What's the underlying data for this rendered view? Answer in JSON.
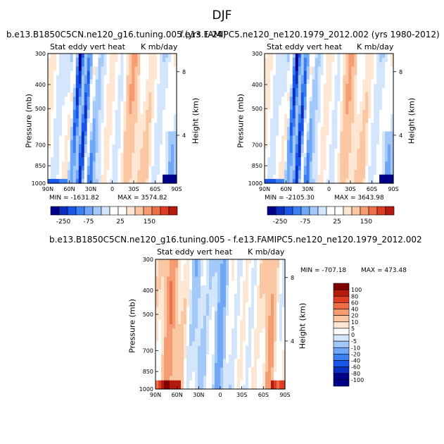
{
  "title": "DJF",
  "colors": {
    "cold": [
      "#00008a",
      "#0a2fc0",
      "#1a57e8",
      "#3b7ff0",
      "#6fa6f5",
      "#a3c8fa",
      "#d4e6fc"
    ],
    "neutral": "#ffffff",
    "warm": [
      "#fde6d2",
      "#fbc6a2",
      "#f69c72",
      "#ee6e48",
      "#dd3d22",
      "#b51a0e",
      "#800000"
    ]
  },
  "chart_data": [
    {
      "type": "heatmap",
      "title": "b.e13.B1850C5CN.ne120_g16.tuning.005 (yrs 1-24)",
      "subtitle_left": "Stat eddy vert heat",
      "subtitle_right": "K mb/day",
      "xlabel": "",
      "ylabel": "Pressure (mb)",
      "ylabel_right": "Height (km)",
      "x_ticks": [
        "90N",
        "60N",
        "30N",
        "0",
        "30S",
        "60S",
        "90S"
      ],
      "y_ticks": [
        "300",
        "400",
        "500",
        "700",
        "850",
        "1000"
      ],
      "y_right_ticks": [
        "8",
        "4"
      ],
      "min_label": "MIN = -1631.82",
      "max_label": "MAX = 3574.82",
      "colorbar_ticks": [
        "-250",
        "-75",
        "25",
        "150"
      ]
    },
    {
      "type": "heatmap",
      "title": "f.e13.FAMIPC5.ne120_ne120.1979_2012.002 (yrs 1980-2012)",
      "subtitle_left": "Stat eddy vert heat",
      "subtitle_right": "K mb/day",
      "xlabel": "",
      "ylabel": "Pressure (mb)",
      "ylabel_right": "Height (km)",
      "x_ticks": [
        "90N",
        "60N",
        "30N",
        "0",
        "30S",
        "60S",
        "90S"
      ],
      "y_ticks": [
        "300",
        "400",
        "500",
        "700",
        "850",
        "1000"
      ],
      "y_right_ticks": [
        "8",
        "4"
      ],
      "min_label": "MIN = -2105.30",
      "max_label": "MAX = 3643.98",
      "colorbar_ticks": [
        "-250",
        "-75",
        "25",
        "150"
      ]
    },
    {
      "type": "heatmap",
      "title": "b.e13.B1850C5CN.ne120_g16.tuning.005 - f.e13.FAMIPC5.ne120_ne120.1979_2012.002",
      "subtitle_left": "Stat eddy vert heat",
      "subtitle_right": "K mb/day",
      "xlabel": "",
      "ylabel": "Pressure (mb)",
      "ylabel_right": "Height (km)",
      "x_ticks": [
        "90N",
        "60N",
        "30N",
        "0",
        "30S",
        "60S",
        "90S"
      ],
      "y_ticks": [
        "300",
        "400",
        "500",
        "700",
        "850",
        "1000"
      ],
      "y_right_ticks": [
        "8",
        "4"
      ],
      "min_label": "MIN = -707.18",
      "max_label": "MAX = 473.48",
      "colorbar_ticks": [
        "100",
        "80",
        "60",
        "40",
        "20",
        "10",
        "5",
        "0",
        "-5",
        "-10",
        "-20",
        "-40",
        "-60",
        "-80",
        "-100"
      ]
    }
  ]
}
